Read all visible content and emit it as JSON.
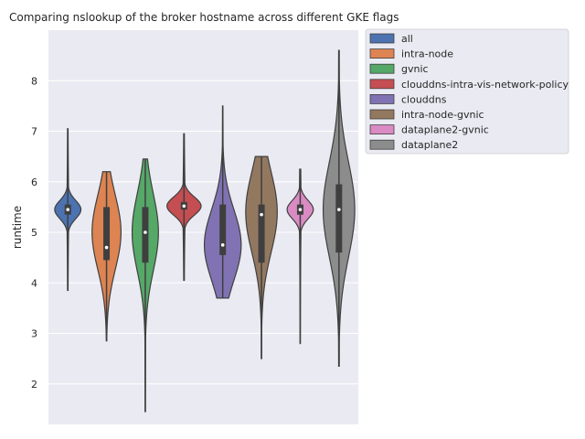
{
  "chart_data": {
    "type": "violin",
    "title": "Comparing nslookup of the broker hostname across different GKE flags",
    "xlabel": "",
    "ylabel": "runtime",
    "ylim": [
      1.2,
      9.0
    ],
    "yticks": [
      2,
      3,
      4,
      5,
      6,
      7,
      8
    ],
    "grid": true,
    "legend_position": "outside-top-right",
    "series": [
      {
        "name": "all",
        "color": "#4c72b0",
        "min": 3.85,
        "max": 7.05,
        "q1": 5.35,
        "median": 5.45,
        "q3": 5.55,
        "mode": 5.45,
        "half_width": 0.05
      },
      {
        "name": "intra-node",
        "color": "#dd8452",
        "min": 2.85,
        "max": 6.2,
        "q1": 4.45,
        "median": 4.7,
        "q3": 5.5,
        "mode": 5.0,
        "half_width": 0.055
      },
      {
        "name": "gvnic",
        "color": "#55a868",
        "min": 1.45,
        "max": 6.45,
        "q1": 4.4,
        "median": 5.0,
        "q3": 5.5,
        "mode": 5.0,
        "half_width": 0.05
      },
      {
        "name": "clouddns-intra-vis-network-policy",
        "color": "#c44e52",
        "min": 4.05,
        "max": 6.95,
        "q1": 5.45,
        "median": 5.52,
        "q3": 5.6,
        "mode": 5.52,
        "half_width": 0.065
      },
      {
        "name": "clouddns",
        "color": "#8172b3",
        "min": 3.7,
        "max": 7.5,
        "q1": 4.55,
        "median": 4.75,
        "q3": 5.55,
        "mode": 4.75,
        "half_width": 0.07
      },
      {
        "name": "intra-node-gvnic",
        "color": "#937860",
        "min": 2.5,
        "max": 6.5,
        "q1": 4.4,
        "median": 5.35,
        "q3": 5.55,
        "mode": 5.4,
        "half_width": 0.06
      },
      {
        "name": "dataplane2-gvnic",
        "color": "#da8bc3",
        "min": 2.8,
        "max": 6.25,
        "q1": 5.35,
        "median": 5.45,
        "q3": 5.55,
        "mode": 5.45,
        "half_width": 0.05
      },
      {
        "name": "dataplane2",
        "color": "#8c8c8c",
        "min": 2.35,
        "max": 8.6,
        "q1": 4.6,
        "median": 5.45,
        "q3": 5.95,
        "mode": 5.45,
        "half_width": 0.06
      }
    ]
  }
}
